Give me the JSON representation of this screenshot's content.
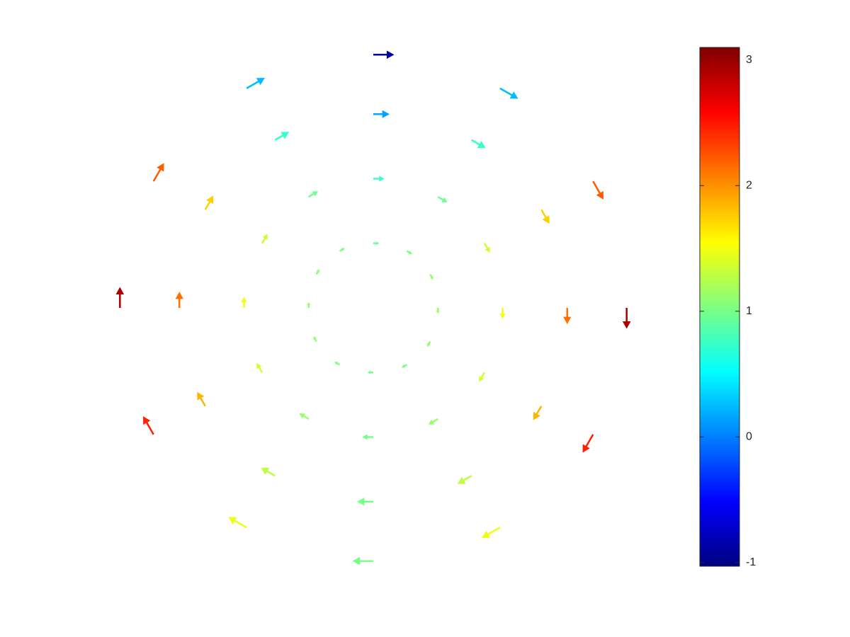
{
  "chart_data": {
    "type": "quiver",
    "x": [
      0.98,
      0.85,
      0.49,
      0,
      -0.49,
      -0.85,
      -0.98,
      -0.85,
      -0.49,
      0,
      0.49,
      0.85,
      0.75,
      0.65,
      0.38,
      0,
      -0.38,
      -0.65,
      -0.75,
      -0.65,
      -0.38,
      0,
      0.38,
      0.65,
      0.5,
      0.43,
      0.25,
      0,
      -0.25,
      -0.43,
      -0.5,
      -0.43,
      -0.25,
      0,
      0.25,
      0.43,
      0.25,
      0.22,
      0.13,
      0,
      -0.13,
      -0.22,
      -0.25,
      -0.22,
      -0.13,
      0,
      0.13,
      0.22
    ],
    "y": [
      0,
      0.49,
      0.85,
      0.98,
      0.85,
      0.49,
      0,
      -0.49,
      -0.85,
      -0.98,
      -0.85,
      -0.49,
      0,
      0.38,
      0.65,
      0.75,
      0.65,
      0.38,
      0,
      -0.38,
      -0.65,
      -0.75,
      -0.65,
      -0.38,
      0,
      0.25,
      0.43,
      0.5,
      0.43,
      0.25,
      0,
      -0.25,
      -0.43,
      -0.5,
      -0.43,
      -0.25,
      0,
      0.13,
      0.22,
      0.25,
      0.22,
      0.13,
      0,
      -0.13,
      -0.22,
      -0.25,
      -0.22,
      -0.13
    ],
    "u": [
      0,
      0.039,
      0.068,
      0.078,
      0.068,
      0.039,
      0,
      -0.039,
      -0.068,
      -0.078,
      -0.068,
      -0.039,
      0,
      0.03,
      0.052,
      0.06,
      0.052,
      0.03,
      0,
      -0.03,
      -0.052,
      -0.06,
      -0.052,
      -0.03,
      0,
      0.02,
      0.034,
      0.04,
      0.034,
      0.02,
      0,
      -0.02,
      -0.034,
      -0.04,
      -0.034,
      -0.02,
      0,
      0.01,
      0.018,
      0.02,
      0.018,
      0.01,
      0,
      -0.01,
      -0.018,
      -0.02,
      -0.018,
      -0.01
    ],
    "v": [
      -0.078,
      -0.068,
      -0.039,
      0,
      0.039,
      0.068,
      0.078,
      0.068,
      0.039,
      0,
      -0.039,
      -0.068,
      -0.06,
      -0.052,
      -0.03,
      0,
      0.03,
      0.052,
      0.06,
      0.052,
      0.03,
      0,
      -0.03,
      -0.052,
      -0.04,
      -0.034,
      -0.02,
      0,
      0.02,
      0.034,
      0.04,
      0.034,
      0.02,
      0,
      -0.02,
      -0.034,
      -0.02,
      -0.018,
      -0.01,
      0,
      0.01,
      0.018,
      0.02,
      0.018,
      0.01,
      0,
      -0.01,
      -0.018
    ],
    "c": [
      2.92,
      2.21,
      0.25,
      -0.88,
      0.25,
      2.21,
      2.92,
      2.45,
      1.48,
      1.0,
      1.48,
      2.45,
      2.13,
      1.74,
      0.74,
      0.16,
      0.74,
      1.74,
      2.13,
      1.85,
      1.29,
      1.0,
      1.29,
      1.85,
      1.5,
      1.34,
      0.97,
      0.75,
      0.97,
      1.34,
      1.5,
      1.37,
      1.13,
      1.0,
      1.13,
      1.37,
      1.13,
      1.09,
      1.01,
      0.97,
      1.01,
      1.09,
      1.13,
      1.1,
      1.03,
      1.0,
      1.03,
      1.1
    ],
    "xlim": [
      -1,
      1
    ],
    "ylim": [
      -1,
      1
    ],
    "colormap": "jet",
    "clim": [
      -1.03,
      3.1
    ],
    "cticks": [
      -1,
      0,
      1,
      2,
      3
    ]
  }
}
